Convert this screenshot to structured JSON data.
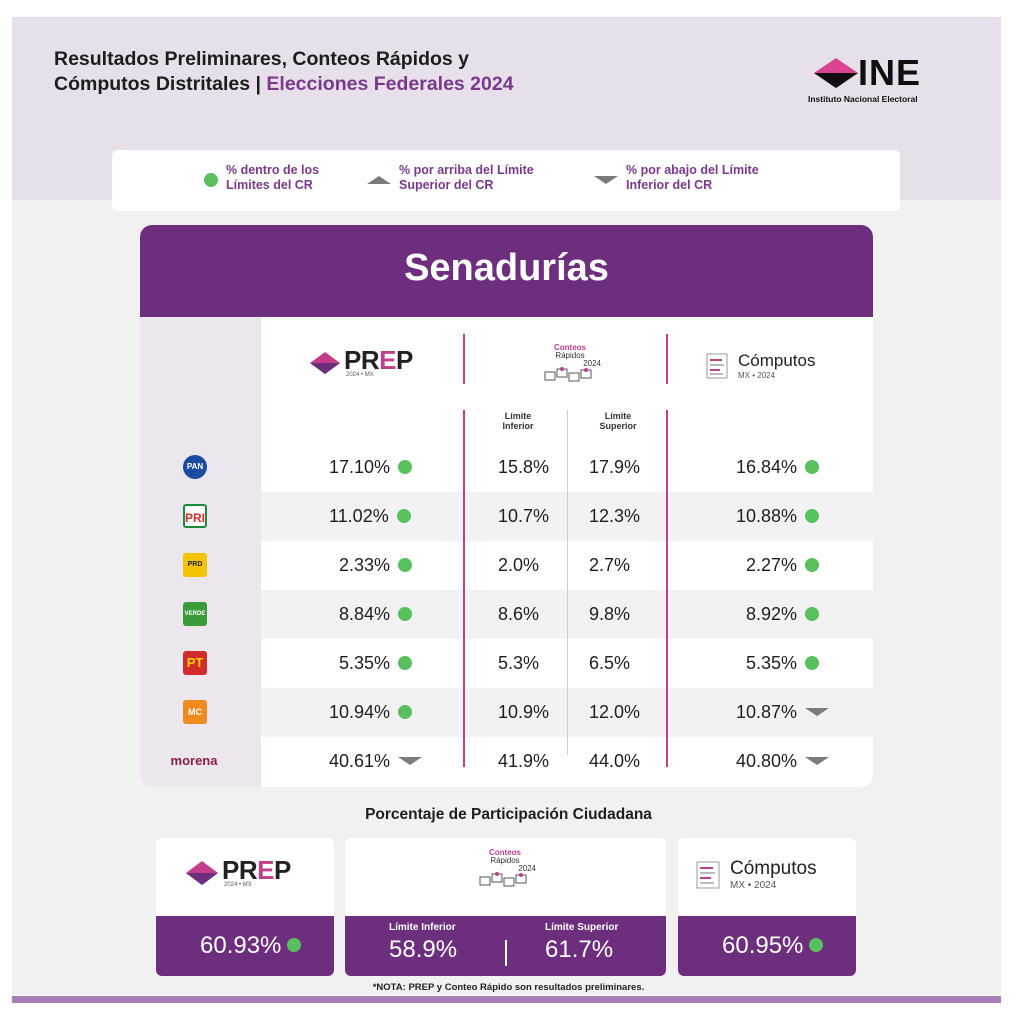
{
  "header": {
    "title_line1": "Resultados Preliminares, Conteos Rápidos y",
    "title_line2_a": "Cómputos Distritales | ",
    "title_line2_b": "Elecciones Federales 2024",
    "ine_logo_word": "INE",
    "ine_logo_sub": "Instituto Nacional Electoral"
  },
  "legend": [
    {
      "icon": "green-dot-icon",
      "line1": "% dentro de los",
      "line2": "Límites del CR"
    },
    {
      "icon": "triangle-up-icon",
      "line1": "% por arriba del Límite",
      "line2": "Superior del CR"
    },
    {
      "icon": "triangle-down-icon",
      "line1": "% por abajo del Límite",
      "line2": "Inferior del CR"
    }
  ],
  "colors": {
    "accent": "#6d2f7d",
    "pink": "#c03e8a",
    "green": "#58c15d",
    "gray_marker": "#7b7b7b"
  },
  "table": {
    "title": "Senadurías",
    "prep_logo": {
      "word_a": "PR",
      "word_e": "E",
      "word_b": "P",
      "sub": "2024 • MX"
    },
    "cr_logo": {
      "line1": "Conteos",
      "line2": "Rápidos",
      "line3": "2024"
    },
    "computos_logo": {
      "word": "Cómputos",
      "sub": "MX • 2024"
    },
    "limite_inferior": [
      "Límite",
      "Inferior"
    ],
    "limite_superior": [
      "Límite",
      "Superior"
    ],
    "rows": [
      {
        "party": "PAN",
        "prep": "17.10%",
        "prep_status": "within",
        "li": "15.8%",
        "ls": "17.9%",
        "computos": "16.84%",
        "computos_status": "within"
      },
      {
        "party": "PRI",
        "prep": "11.02%",
        "prep_status": "within",
        "li": "10.7%",
        "ls": "12.3%",
        "computos": "10.88%",
        "computos_status": "within"
      },
      {
        "party": "PRD",
        "prep": "2.33%",
        "prep_status": "within",
        "li": "2.0%",
        "ls": "2.7%",
        "computos": "2.27%",
        "computos_status": "within"
      },
      {
        "party": "VERDE",
        "prep": "8.84%",
        "prep_status": "within",
        "li": "8.6%",
        "ls": "9.8%",
        "computos": "8.92%",
        "computos_status": "within"
      },
      {
        "party": "PT",
        "prep": "5.35%",
        "prep_status": "within",
        "li": "5.3%",
        "ls": "6.5%",
        "computos": "5.35%",
        "computos_status": "within"
      },
      {
        "party": "MOVIMIENTO CIUDADANO",
        "prep": "10.94%",
        "prep_status": "within",
        "li": "10.9%",
        "ls": "12.0%",
        "computos": "10.87%",
        "computos_status": "below"
      },
      {
        "party": "morena",
        "prep": "40.61%",
        "prep_status": "below",
        "li": "41.9%",
        "ls": "44.0%",
        "computos": "40.80%",
        "computos_status": "below"
      }
    ]
  },
  "participacion": {
    "title": "Porcentaje de Participación Ciudadana",
    "prep_value": "60.93%",
    "li_label": "Límite Inferior",
    "li_value": "58.9%",
    "ls_label": "Límite Superior",
    "ls_value": "61.7%",
    "computos_value": "60.95%"
  },
  "note": "*NOTA: PREP y Conteo Rápido son resultados preliminares."
}
